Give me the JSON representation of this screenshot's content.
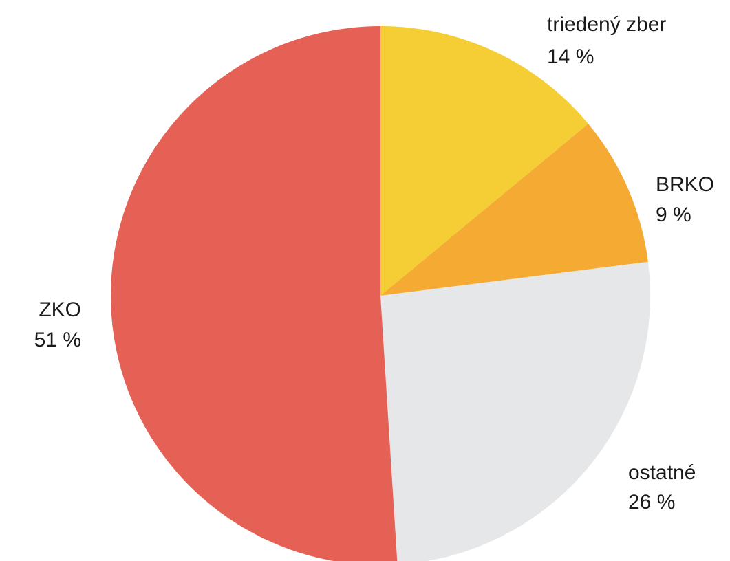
{
  "chart_data": {
    "type": "pie",
    "title": "",
    "start": "top",
    "direction": "clockwise",
    "slices": [
      {
        "label": "triedený zber",
        "value": 14,
        "display": "14 %",
        "color": "#F4CE34"
      },
      {
        "label": "BRKO",
        "value": 9,
        "display": "9 %",
        "color": "#F5AA33"
      },
      {
        "label": "ostatné",
        "value": 26,
        "display": "26 %",
        "color": "#E6E7E8"
      },
      {
        "label": "ZKO",
        "value": 51,
        "display": "51 %",
        "color": "#E56155"
      }
    ]
  }
}
